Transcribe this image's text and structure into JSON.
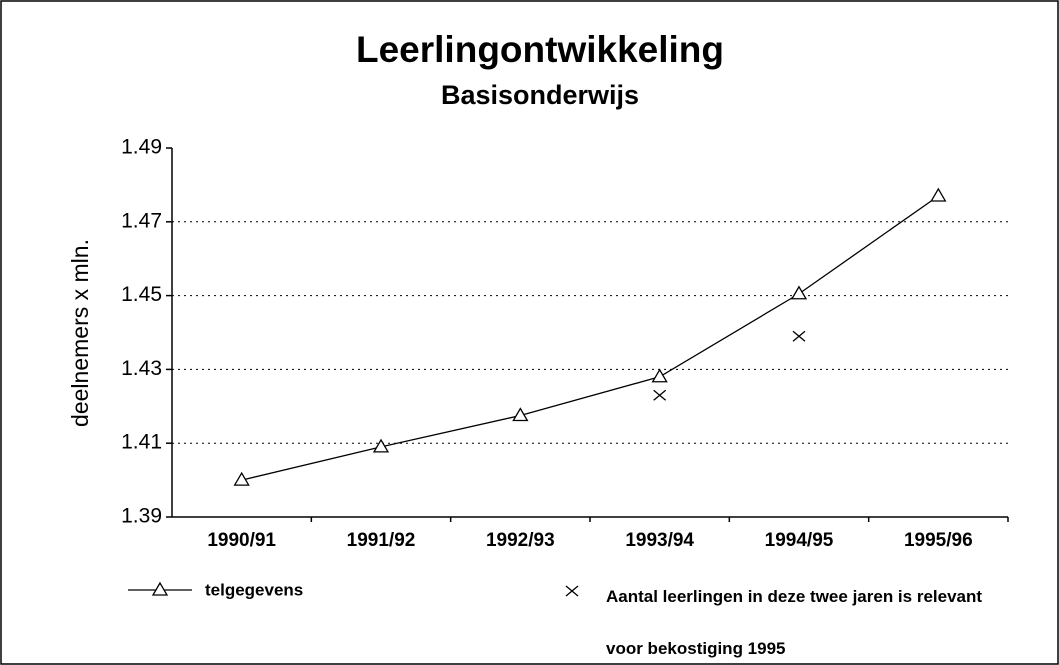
{
  "chart_data": {
    "type": "line",
    "title": "Leerlingontwikkeling",
    "subtitle": "Basisonderwijs",
    "y_label": "deelnemers x mln.",
    "categories": [
      "1990/91",
      "1991/92",
      "1992/93",
      "1993/94",
      "1994/95",
      "1995/96"
    ],
    "series": [
      {
        "name": "telgegevens",
        "color": "#000000",
        "marker": "triangle",
        "line": true,
        "values": [
          1.4,
          1.409,
          1.4175,
          1.428,
          1.4505,
          1.477
        ]
      },
      {
        "name": "Aantal leerlingen in deze twee jaren is relevant voor bekostiging 1995",
        "color": "#000000",
        "marker": "cross",
        "line": false,
        "values": [
          null,
          null,
          null,
          1.423,
          1.439,
          null
        ]
      }
    ],
    "ylim": [
      1.39,
      1.49
    ],
    "yticks": [
      1.39,
      1.41,
      1.43,
      1.45,
      1.47,
      1.49
    ],
    "grid": true
  }
}
